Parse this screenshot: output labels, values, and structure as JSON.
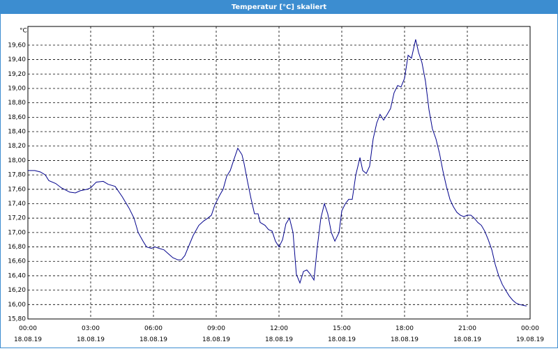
{
  "chart_data": {
    "type": "line",
    "title": "Temperatur [°C] skaliert",
    "ylabel": "°C",
    "grid": true,
    "xlim": [
      0,
      24
    ],
    "ylim": [
      15.8,
      19.86
    ],
    "xticks": [
      {
        "value": 0,
        "label": "00:00\n18.08.19"
      },
      {
        "value": 3,
        "label": "03:00\n18.08.19"
      },
      {
        "value": 6,
        "label": "06:00\n18.08.19"
      },
      {
        "value": 9,
        "label": "09:00\n18.08.19"
      },
      {
        "value": 12,
        "label": "12:00\n18.08.19"
      },
      {
        "value": 15,
        "label": "15:00\n18.08.19"
      },
      {
        "value": 18,
        "label": "18:00\n18.08.19"
      },
      {
        "value": 21,
        "label": "21:00\n18.08.19"
      },
      {
        "value": 24,
        "label": "00:00\n19.08.19"
      }
    ],
    "yticks": [
      {
        "value": 15.8,
        "label": "15,80"
      },
      {
        "value": 16.0,
        "label": "16,00"
      },
      {
        "value": 16.2,
        "label": "16,20"
      },
      {
        "value": 16.4,
        "label": "16,40"
      },
      {
        "value": 16.6,
        "label": "16,60"
      },
      {
        "value": 16.8,
        "label": "16,80"
      },
      {
        "value": 17.0,
        "label": "17,00"
      },
      {
        "value": 17.2,
        "label": "17,20"
      },
      {
        "value": 17.4,
        "label": "17,40"
      },
      {
        "value": 17.6,
        "label": "17,60"
      },
      {
        "value": 17.8,
        "label": "17,80"
      },
      {
        "value": 18.0,
        "label": "18,00"
      },
      {
        "value": 18.2,
        "label": "18,20"
      },
      {
        "value": 18.4,
        "label": "18,40"
      },
      {
        "value": 18.6,
        "label": "18,60"
      },
      {
        "value": 18.8,
        "label": "18,80"
      },
      {
        "value": 19.0,
        "label": "19,00"
      },
      {
        "value": 19.2,
        "label": "19,20"
      },
      {
        "value": 19.4,
        "label": "19,40"
      },
      {
        "value": 19.6,
        "label": "19,60"
      }
    ],
    "x": [
      0,
      0.33,
      0.6,
      0.83,
      1,
      1.33,
      1.6,
      2,
      2.27,
      2.5,
      2.83,
      3,
      3.27,
      3.6,
      3.83,
      4.17,
      4.5,
      4.83,
      5.07,
      5.27,
      5.5,
      5.67,
      5.9,
      6.07,
      6.27,
      6.5,
      6.73,
      6.93,
      7.17,
      7.33,
      7.5,
      7.67,
      7.9,
      8.17,
      8.4,
      8.6,
      8.77,
      8.93,
      9.17,
      9.33,
      9.5,
      9.67,
      9.83,
      10.03,
      10.23,
      10.33,
      10.5,
      10.67,
      10.83,
      11,
      11.1,
      11.33,
      11.5,
      11.67,
      11.83,
      12,
      12.17,
      12.33,
      12.5,
      12.67,
      12.83,
      13,
      13.17,
      13.33,
      13.5,
      13.67,
      13.83,
      14,
      14.17,
      14.33,
      14.5,
      14.67,
      14.87,
      15,
      15.17,
      15.33,
      15.5,
      15.67,
      15.87,
      16,
      16.17,
      16.33,
      16.5,
      16.67,
      16.83,
      17,
      17.17,
      17.33,
      17.5,
      17.67,
      17.83,
      18,
      18.17,
      18.33,
      18.53,
      18.67,
      18.83,
      19,
      19.17,
      19.33,
      19.5,
      19.67,
      19.83,
      20,
      20.17,
      20.33,
      20.5,
      20.67,
      20.83,
      21,
      21.17,
      21.33,
      21.5,
      21.67,
      21.83,
      22,
      22.17,
      22.33,
      22.5,
      22.67,
      22.83,
      23,
      23.17,
      23.33,
      23.5,
      23.67,
      23.83
    ],
    "series": [
      {
        "color": "#00008b",
        "values": [
          17.86,
          17.86,
          17.84,
          17.8,
          17.72,
          17.68,
          17.62,
          17.56,
          17.55,
          17.58,
          17.6,
          17.62,
          17.7,
          17.71,
          17.67,
          17.64,
          17.5,
          17.34,
          17.2,
          17.0,
          16.88,
          16.8,
          16.78,
          16.8,
          16.78,
          16.76,
          16.7,
          16.65,
          16.62,
          16.62,
          16.68,
          16.8,
          16.96,
          17.1,
          17.16,
          17.2,
          17.24,
          17.38,
          17.52,
          17.6,
          17.78,
          17.86,
          18.0,
          18.17,
          18.08,
          17.96,
          17.7,
          17.46,
          17.26,
          17.26,
          17.14,
          17.1,
          17.04,
          17.02,
          16.88,
          16.8,
          16.9,
          17.12,
          17.2,
          17.0,
          16.42,
          16.3,
          16.46,
          16.48,
          16.42,
          16.34,
          16.8,
          17.2,
          17.4,
          17.26,
          17.0,
          16.88,
          17.0,
          17.3,
          17.4,
          17.46,
          17.46,
          17.8,
          18.04,
          17.86,
          17.82,
          17.92,
          18.3,
          18.52,
          18.64,
          18.56,
          18.64,
          18.72,
          18.94,
          19.04,
          19.02,
          19.14,
          19.46,
          19.42,
          19.68,
          19.5,
          19.36,
          19.1,
          18.7,
          18.44,
          18.3,
          18.1,
          17.86,
          17.64,
          17.46,
          17.36,
          17.28,
          17.24,
          17.22,
          17.24,
          17.24,
          17.2,
          17.14,
          17.1,
          17.02,
          16.9,
          16.76,
          16.56,
          16.4,
          16.28,
          16.2,
          16.12,
          16.06,
          16.02,
          16.0,
          15.99,
          15.98
        ]
      }
    ]
  }
}
